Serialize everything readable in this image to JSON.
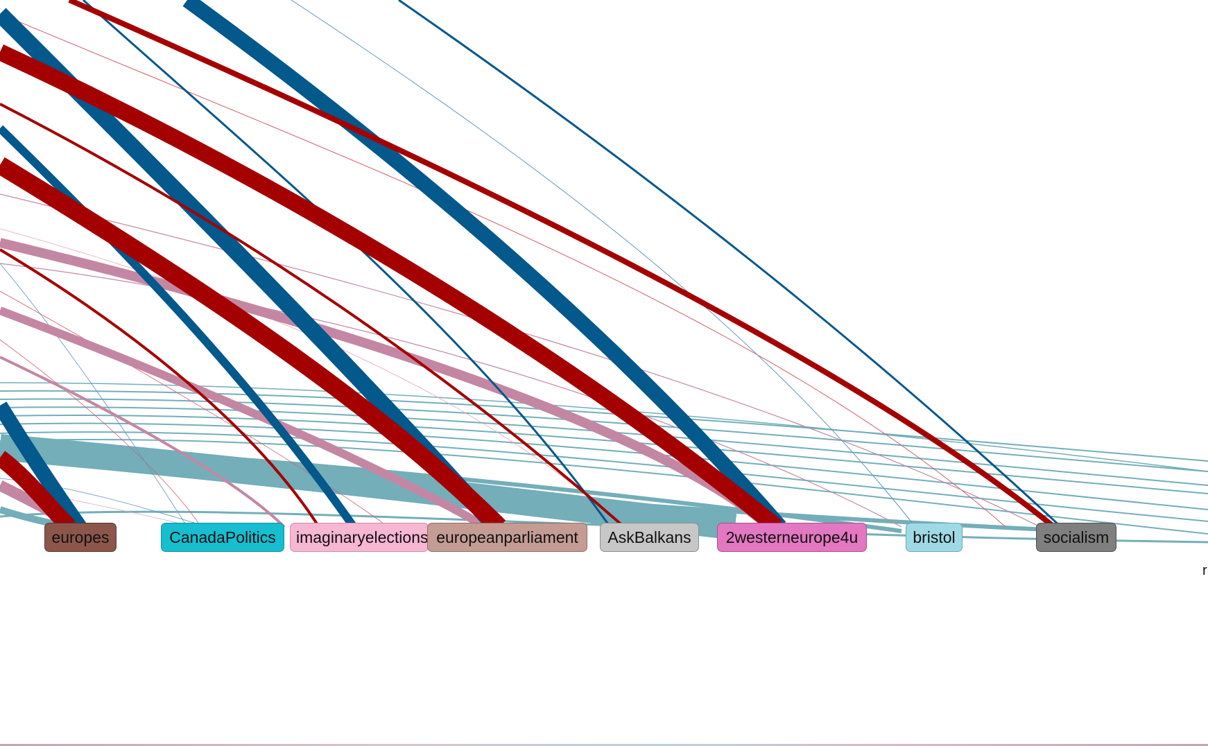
{
  "colors": {
    "blue": "#03588C",
    "red": "#A50000",
    "pink": "#C487A3",
    "teal": "#73AEB9",
    "light_blue": "#5E96C2",
    "light_red": "#D35E6A"
  },
  "nodes": [
    {
      "id": "europes",
      "label": "europes",
      "fill": "#8C564B",
      "border": "#5A3730"
    },
    {
      "id": "CanadaPolitics",
      "label": "CanadaPolitics",
      "fill": "#17BECF",
      "border": "#0F8F9C"
    },
    {
      "id": "imaginaryelections",
      "label": "imaginaryelections",
      "fill": "#F7B6D2",
      "border": "#C98FA8"
    },
    {
      "id": "europeanparliament",
      "label": "europeanparliament",
      "fill": "#C49C94",
      "border": "#8F6F69"
    },
    {
      "id": "AskBalkans",
      "label": "AskBalkans",
      "fill": "#C7C7C7",
      "border": "#8E8E8E"
    },
    {
      "id": "2westerneurope4u",
      "label": "2westerneurope4u",
      "fill": "#E377C2",
      "border": "#A8508C"
    },
    {
      "id": "bristol",
      "label": "bristol",
      "fill": "#9EDAE5",
      "border": "#6FA6B0"
    },
    {
      "id": "socialism",
      "label": "socialism",
      "fill": "#7F7F7F",
      "border": "#4F4F4F"
    }
  ],
  "edge_label_fragment": "r"
}
